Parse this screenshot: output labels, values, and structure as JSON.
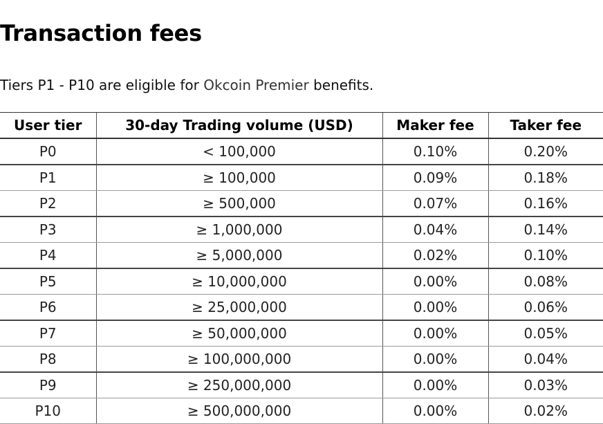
{
  "page": {
    "title": "Transaction fees",
    "intro_prefix": "Tiers P1 - P10 are eligible for ",
    "intro_link": "Okcoin Premier",
    "intro_suffix": " benefits."
  },
  "table": {
    "headers": [
      "User tier",
      "30-day Trading volume (USD)",
      "Maker fee",
      "Taker fee"
    ],
    "rows": [
      [
        "P0",
        "< 100,000",
        "0.10%",
        "0.20%"
      ],
      [
        "P1",
        "≥ 100,000",
        "0.09%",
        "0.18%"
      ],
      [
        "P2",
        "≥ 500,000",
        "0.07%",
        "0.16%"
      ],
      [
        "P3",
        "≥ 1,000,000",
        "0.04%",
        "0.14%"
      ],
      [
        "P4",
        "≥ 5,000,000",
        "0.02%",
        "0.10%"
      ],
      [
        "P5",
        "≥ 10,000,000",
        "0.00%",
        "0.08%"
      ],
      [
        "P6",
        "≥ 25,000,000",
        "0.00%",
        "0.06%"
      ],
      [
        "P7",
        "≥ 50,000,000",
        "0.00%",
        "0.05%"
      ],
      [
        "P8",
        "≥ 100,000,000",
        "0.00%",
        "0.04%"
      ],
      [
        "P9",
        "≥ 250,000,000",
        "0.00%",
        "0.03%"
      ],
      [
        "P10",
        "≥ 500,000,000",
        "0.00%",
        "0.02%"
      ]
    ]
  }
}
